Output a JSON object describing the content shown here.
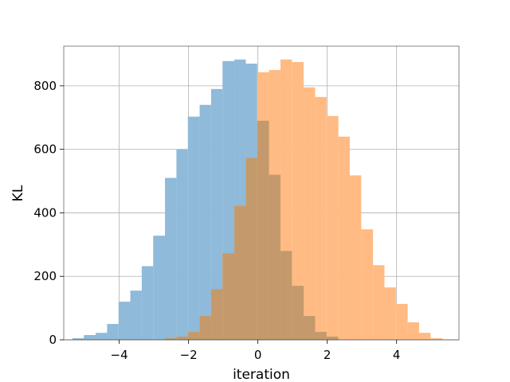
{
  "chart_data": {
    "type": "histogram",
    "title": "",
    "xlabel": "iteration",
    "ylabel": "KL",
    "xlim": [
      -5.6,
      5.8
    ],
    "ylim": [
      0,
      925
    ],
    "x_ticks": [
      -4,
      -2,
      0,
      2,
      4
    ],
    "x_tick_labels": [
      "−4",
      "−2",
      "0",
      "2",
      "4"
    ],
    "y_ticks": [
      0,
      200,
      400,
      600,
      800
    ],
    "y_tick_labels": [
      "0",
      "200",
      "400",
      "600",
      "800"
    ],
    "grid": true,
    "legend": false,
    "overlap_color": "#c49a6c",
    "series": [
      {
        "color": "#8fbad9",
        "bin_edges": [
          -5.35,
          -5.02,
          -4.68,
          -4.35,
          -4.02,
          -3.68,
          -3.35,
          -3.02,
          -2.68,
          -2.35,
          -2.02,
          -1.68,
          -1.35,
          -1.02,
          -0.68,
          -0.35,
          -0.02,
          0.32,
          0.65,
          0.98,
          1.32,
          1.65,
          1.98,
          2.32
        ],
        "counts": [
          5,
          15,
          22,
          50,
          120,
          155,
          232,
          328,
          510,
          600,
          703,
          740,
          790,
          878,
          883,
          870,
          690,
          520,
          280,
          170,
          75,
          25,
          10
        ]
      },
      {
        "color": "#ffbb83",
        "bin_edges": [
          -2.68,
          -2.35,
          -2.02,
          -1.68,
          -1.35,
          -1.02,
          -0.68,
          -0.35,
          -0.02,
          0.32,
          0.65,
          0.98,
          1.32,
          1.65,
          1.98,
          2.32,
          2.65,
          2.98,
          3.32,
          3.65,
          3.98,
          4.32,
          4.65,
          4.98,
          5.32
        ],
        "counts": [
          5,
          10,
          25,
          75,
          160,
          273,
          423,
          573,
          843,
          850,
          883,
          875,
          795,
          765,
          705,
          640,
          518,
          348,
          235,
          165,
          113,
          55,
          22,
          5
        ]
      }
    ]
  }
}
